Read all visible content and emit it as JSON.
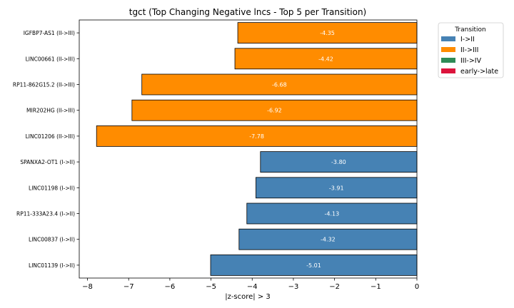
{
  "chart_data": {
    "type": "bar",
    "orientation": "horizontal",
    "title": "tgct (Top Changing Negative lncs - Top 5 per Transition)",
    "xlabel": "|z-score| > 3",
    "ylabel": "",
    "xlim": [
      -8.2,
      0
    ],
    "xticks": [
      -8,
      -7,
      -6,
      -5,
      -4,
      -3,
      -2,
      -1,
      0
    ],
    "grid": false,
    "legend": {
      "title": "Transition",
      "placement": "outside-top-right",
      "entries": [
        {
          "label": "I->II",
          "color": "#4682b4"
        },
        {
          "label": "II->III",
          "color": "#ff8c00"
        },
        {
          "label": "III->IV",
          "color": "#2e8b57"
        },
        {
          "label": "early->late",
          "color": "#dc143c"
        }
      ]
    },
    "bars": [
      {
        "label": "IGFBP7-AS1 (II->III)",
        "value": -4.35,
        "value_label": "-4.35",
        "transition": "II->III",
        "color": "#ff8c00"
      },
      {
        "label": "LINC00661 (II->III)",
        "value": -4.42,
        "value_label": "-4.42",
        "transition": "II->III",
        "color": "#ff8c00"
      },
      {
        "label": "RP11-862G15.2 (II->III)",
        "value": -6.68,
        "value_label": "-6.68",
        "transition": "II->III",
        "color": "#ff8c00"
      },
      {
        "label": "MIR202HG (II->III)",
        "value": -6.92,
        "value_label": "-6.92",
        "transition": "II->III",
        "color": "#ff8c00"
      },
      {
        "label": "LINC01206 (II->III)",
        "value": -7.78,
        "value_label": "-7.78",
        "transition": "II->III",
        "color": "#ff8c00"
      },
      {
        "label": "SPANXA2-OT1 (I->II)",
        "value": -3.8,
        "value_label": "-3.80",
        "transition": "I->II",
        "color": "#4682b4"
      },
      {
        "label": "LINC01198 (I->II)",
        "value": -3.91,
        "value_label": "-3.91",
        "transition": "I->II",
        "color": "#4682b4"
      },
      {
        "label": "RP11-333A23.4 (I->II)",
        "value": -4.13,
        "value_label": "-4.13",
        "transition": "I->II",
        "color": "#4682b4"
      },
      {
        "label": "LINC00837 (I->II)",
        "value": -4.32,
        "value_label": "-4.32",
        "transition": "I->II",
        "color": "#4682b4"
      },
      {
        "label": "LINC01139 (I->II)",
        "value": -5.01,
        "value_label": "-5.01",
        "transition": "I->II",
        "color": "#4682b4"
      }
    ]
  }
}
